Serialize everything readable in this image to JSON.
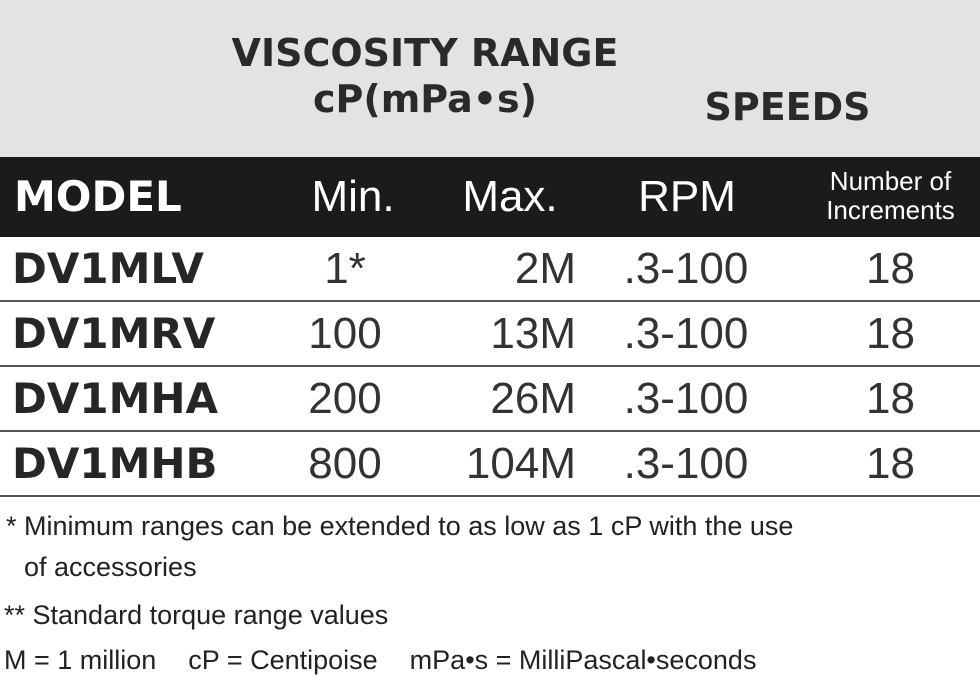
{
  "headings": {
    "viscosity_line1": "VISCOSITY RANGE",
    "viscosity_line2": "cP(mPa•s)",
    "speeds": "SPEEDS"
  },
  "columns": {
    "model": "MODEL",
    "min": "Min.",
    "max": "Max.",
    "rpm": "RPM",
    "increments_line1": "Number of",
    "increments_line2": "Increments"
  },
  "rows": [
    {
      "model": "DV1MLV",
      "min": "1*",
      "max": "2M",
      "rpm": ".3-100",
      "increments": "18"
    },
    {
      "model": "DV1MRV",
      "min": "100",
      "max": "13M",
      "rpm": ".3-100",
      "increments": "18"
    },
    {
      "model": "DV1MHA",
      "min": "200",
      "max": "26M",
      "rpm": ".3-100",
      "increments": "18"
    },
    {
      "model": "DV1MHB",
      "min": "800",
      "max": "104M",
      "rpm": ".3-100",
      "increments": "18"
    }
  ],
  "notes": {
    "note1": "* Minimum ranges can be extended to as low as 1 cP with the use",
    "note1_cont": "of accessories",
    "note2": "** Standard torque range values",
    "legend_m": "M = 1 million",
    "legend_cp": "cP = Centipoise",
    "legend_mpas": "mPa•s = MilliPascal•seconds"
  }
}
